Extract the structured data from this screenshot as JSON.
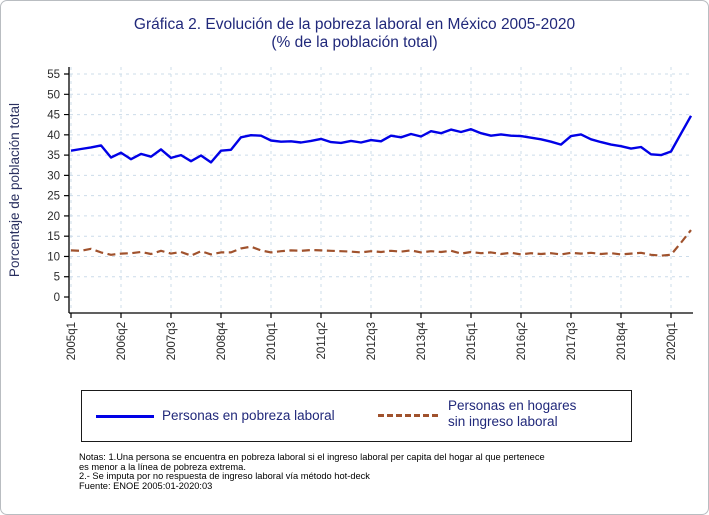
{
  "figure": {
    "title": "Gráfica 2. Evolución de la pobreza laboral en México 2005-2020",
    "subtitle": "(% de la población total)"
  },
  "colors": {
    "series1": "#0101e6",
    "series2": "#a0522d",
    "title_text": "#20287a",
    "legend_text": "#20287a",
    "axis_title_text": "#2a3060",
    "tick_text": "#2b2b2b",
    "grid": "#ccdcea",
    "axis": "#000000"
  },
  "legend": {
    "series1_label": "Personas en pobreza laboral",
    "series2_label_line1": "Personas en hogares",
    "series2_label_line2": "sin ingreso laboral"
  },
  "notes": {
    "line1": "Notas: 1.Una persona se encuentra en pobreza laboral si el ingreso laboral per capita del hogar al que pertenece",
    "line2": "es menor a la línea de pobreza extrema.",
    "line3": "2.- Se imputa por no respuesta de ingreso laboral vía método hot-deck",
    "line4": "Fuente: ENOE 2005:01-2020:03"
  },
  "chart_data": {
    "type": "line",
    "title": "Gráfica 2. Evolución de la pobreza laboral en México 2005-2020",
    "subtitle": "(% de la población total)",
    "ylabel": "Porcentaje de población total",
    "xlabel": "",
    "ylim": [
      0,
      55
    ],
    "ytick_values": [
      0,
      5,
      10,
      15,
      20,
      25,
      30,
      35,
      40,
      45,
      50,
      55
    ],
    "grid": true,
    "legend_position": "bottom",
    "x_unit": "quarter",
    "x_start": "2005q1",
    "x_end": "2020q3",
    "n_points": 63,
    "x_tick_labels": [
      "2005q1",
      "2006q2",
      "2007q3",
      "2008q4",
      "2010q1",
      "2011q2",
      "2012q3",
      "2013q4",
      "2015q1",
      "2016q2",
      "2017q3",
      "2018q4",
      "2020q1"
    ],
    "x_tick_indices": [
      0,
      5,
      10,
      15,
      20,
      25,
      30,
      35,
      40,
      45,
      50,
      55,
      60
    ],
    "series": [
      {
        "name": "Personas en pobreza laboral",
        "color": "#0101e6",
        "style": "solid",
        "values": [
          36.1,
          36.5,
          36.9,
          37.4,
          34.4,
          35.6,
          34.0,
          35.3,
          34.6,
          36.4,
          34.3,
          35.0,
          33.5,
          34.9,
          33.2,
          36.1,
          36.3,
          39.4,
          39.9,
          39.8,
          38.6,
          38.3,
          38.4,
          38.1,
          38.5,
          39.0,
          38.2,
          38.0,
          38.5,
          38.1,
          38.7,
          38.4,
          39.8,
          39.4,
          40.2,
          39.6,
          40.9,
          40.4,
          41.3,
          40.7,
          41.4,
          40.4,
          39.8,
          40.1,
          39.8,
          39.7,
          39.3,
          38.9,
          38.3,
          37.6,
          39.7,
          40.1,
          38.9,
          38.2,
          37.6,
          37.2,
          36.6,
          37.0,
          35.2,
          35.0,
          35.9,
          40.3,
          44.7
        ]
      },
      {
        "name": "Personas en hogares sin ingreso laboral",
        "color": "#a0522d",
        "style": "dashed",
        "values": [
          11.5,
          11.4,
          11.9,
          11.0,
          10.4,
          10.7,
          10.8,
          11.1,
          10.6,
          11.4,
          10.7,
          11.1,
          10.2,
          11.3,
          10.5,
          11.0,
          11.0,
          12.0,
          12.4,
          11.5,
          11.0,
          11.3,
          11.5,
          11.4,
          11.6,
          11.5,
          11.4,
          11.3,
          11.2,
          11.0,
          11.3,
          11.1,
          11.4,
          11.2,
          11.5,
          11.0,
          11.3,
          11.1,
          11.4,
          10.7,
          11.1,
          10.8,
          11.0,
          10.6,
          10.9,
          10.5,
          10.8,
          10.6,
          10.8,
          10.5,
          10.9,
          10.7,
          10.9,
          10.6,
          10.8,
          10.5,
          10.7,
          10.9,
          10.4,
          10.2,
          10.4,
          13.4,
          16.5
        ]
      }
    ]
  }
}
